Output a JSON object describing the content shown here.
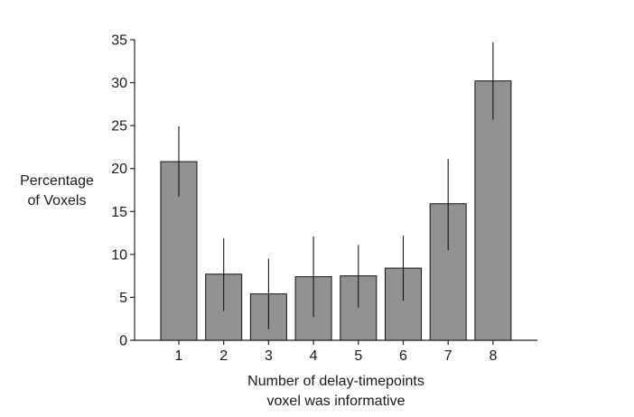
{
  "chart_data": {
    "type": "bar",
    "title": "",
    "ylabel_lines": [
      "Percentage",
      "of Voxels"
    ],
    "xlabel_lines": [
      "Number of delay-timepoints",
      "voxel was informative"
    ],
    "categories": [
      "1",
      "2",
      "3",
      "4",
      "5",
      "6",
      "7",
      "8"
    ],
    "values": [
      20.8,
      7.7,
      5.4,
      7.4,
      7.5,
      8.4,
      15.9,
      30.2
    ],
    "error_low": [
      16.7,
      3.4,
      1.3,
      2.7,
      3.8,
      4.6,
      10.5,
      25.7
    ],
    "error_high": [
      24.9,
      11.9,
      9.5,
      12.1,
      11.1,
      12.2,
      21.1,
      34.7
    ],
    "ylim": [
      0,
      35
    ],
    "yticks": [
      0,
      5,
      10,
      15,
      20,
      25,
      30,
      35
    ],
    "grid": false,
    "colors": {
      "bar_fill": "#929292",
      "bar_stroke": "#111111",
      "axis": "#222222",
      "error_bar": "#111111"
    }
  }
}
